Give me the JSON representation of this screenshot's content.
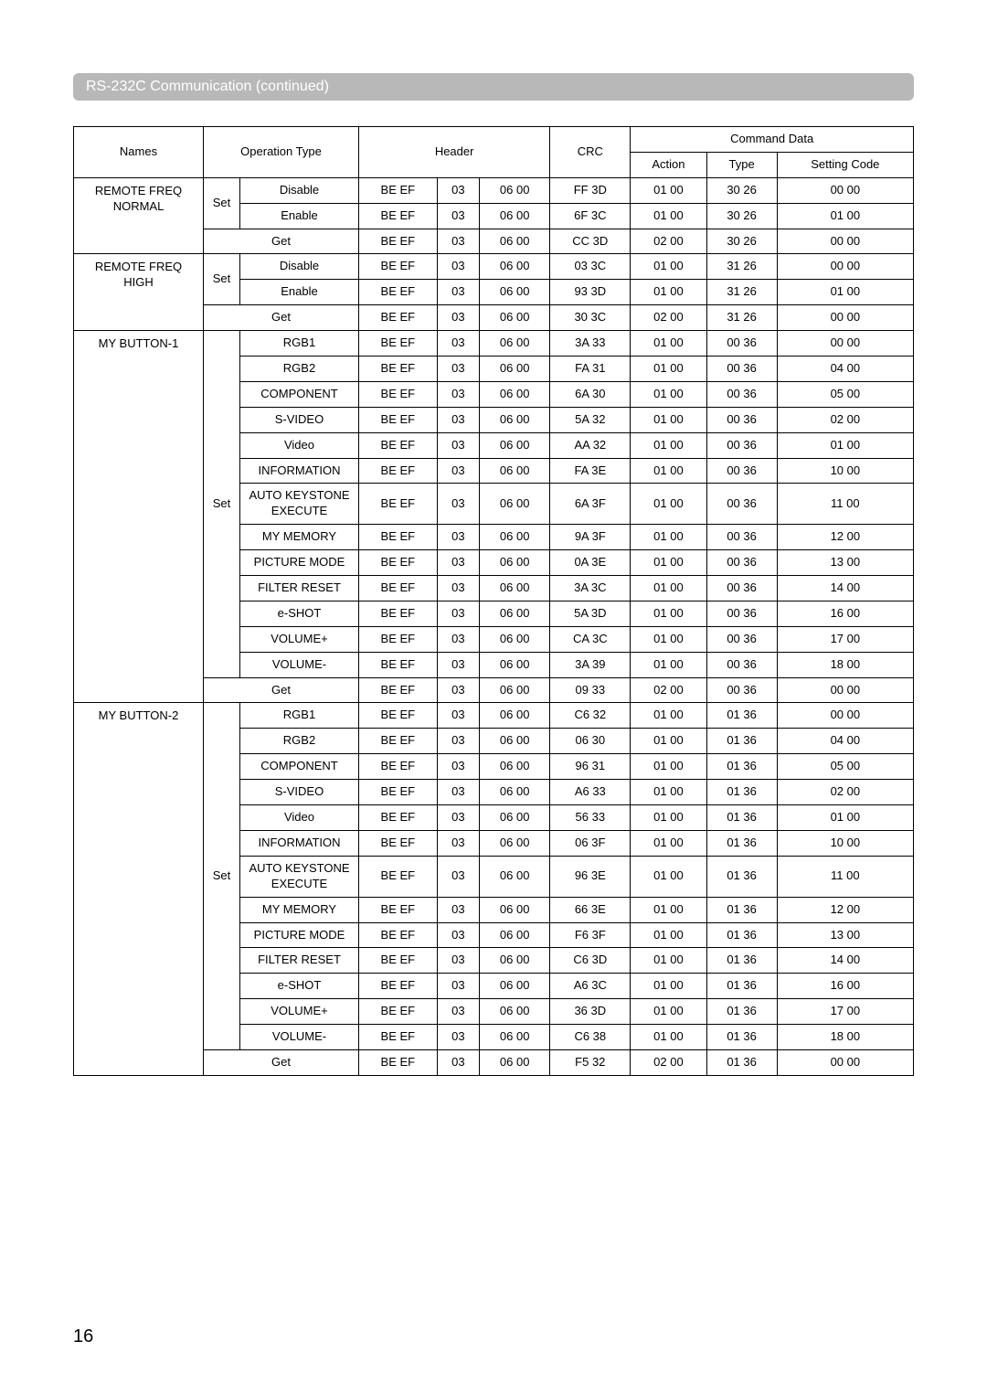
{
  "section_title": "RS-232C Communication (continued)",
  "page_number": "16",
  "headers": {
    "names": "Names",
    "operation_type": "Operation Type",
    "header": "Header",
    "command_data": "Command Data",
    "crc": "CRC",
    "action": "Action",
    "type": "Type",
    "setting_code": "Setting Code"
  },
  "groups": [
    {
      "name_html": "REMOTE FREQ<br>NORMAL",
      "rows": [
        {
          "op_set": "Set",
          "op_val": "Disable",
          "h1": "BE  EF",
          "h2": "03",
          "h3": "06  00",
          "crc": "FF 3D",
          "action": "01 00",
          "type": "30 26",
          "sc": "00 00"
        },
        {
          "op_set": "",
          "op_val": "Enable",
          "h1": "BE  EF",
          "h2": "03",
          "h3": "06  00",
          "crc": "6F 3C",
          "action": "01 00",
          "type": "30 26",
          "sc": "01 00"
        },
        {
          "op_get": "Get",
          "h1": "BE  EF",
          "h2": "03",
          "h3": "06  00",
          "crc": "CC 3D",
          "action": "02 00",
          "type": "30 26",
          "sc": "00 00"
        }
      ]
    },
    {
      "name_html": "REMOTE FREQ HIGH",
      "rows": [
        {
          "op_set": "Set",
          "op_val": "Disable",
          "h1": "BE  EF",
          "h2": "03",
          "h3": "06  00",
          "crc": "03 3C",
          "action": "01 00",
          "type": "31 26",
          "sc": "00 00"
        },
        {
          "op_set": "",
          "op_val": "Enable",
          "h1": "BE  EF",
          "h2": "03",
          "h3": "06  00",
          "crc": "93 3D",
          "action": "01 00",
          "type": "31 26",
          "sc": "01 00"
        },
        {
          "op_get": "Get",
          "h1": "BE  EF",
          "h2": "03",
          "h3": "06  00",
          "crc": "30 3C",
          "action": "02 00",
          "type": "31 26",
          "sc": "00 00"
        }
      ]
    },
    {
      "name_html": "MY BUTTON-1",
      "rows": [
        {
          "op_set": "Set",
          "op_val": "RGB1",
          "h1": "BE  EF",
          "h2": "03",
          "h3": "06  00",
          "crc": "3A 33",
          "action": "01 00",
          "type": "00 36",
          "sc": "00 00"
        },
        {
          "op_set": "",
          "op_val": "RGB2",
          "h1": "BE  EF",
          "h2": "03",
          "h3": "06  00",
          "crc": "FA 31",
          "action": "01 00",
          "type": "00 36",
          "sc": "04 00"
        },
        {
          "op_set": "",
          "op_val": "COMPONENT",
          "h1": "BE  EF",
          "h2": "03",
          "h3": "06  00",
          "crc": "6A 30",
          "action": "01 00",
          "type": "00 36",
          "sc": "05 00"
        },
        {
          "op_set": "",
          "op_val": "S-VIDEO",
          "h1": "BE  EF",
          "h2": "03",
          "h3": "06  00",
          "crc": "5A 32",
          "action": "01 00",
          "type": "00 36",
          "sc": "02 00"
        },
        {
          "op_set": "",
          "op_val": "Video",
          "h1": "BE  EF",
          "h2": "03",
          "h3": "06  00",
          "crc": "AA 32",
          "action": "01 00",
          "type": "00 36",
          "sc": "01 00"
        },
        {
          "op_set": "",
          "op_val": "INFORMATION",
          "h1": "BE  EF",
          "h2": "03",
          "h3": "06  00",
          "crc": "FA 3E",
          "action": "01 00",
          "type": "00 36",
          "sc": "10 00"
        },
        {
          "op_set": "",
          "op_val": "AUTO KEYSTONE EXECUTE",
          "h1": "BE  EF",
          "h2": "03",
          "h3": "06  00",
          "crc": "6A 3F",
          "action": "01 00",
          "type": "00 36",
          "sc": "11 00"
        },
        {
          "op_set": "",
          "op_val": "MY MEMORY",
          "h1": "BE  EF",
          "h2": "03",
          "h3": "06  00",
          "crc": "9A 3F",
          "action": "01 00",
          "type": "00 36",
          "sc": "12 00"
        },
        {
          "op_set": "",
          "op_val": "PICTURE MODE",
          "h1": "BE  EF",
          "h2": "03",
          "h3": "06  00",
          "crc": "0A 3E",
          "action": "01 00",
          "type": "00 36",
          "sc": "13 00"
        },
        {
          "op_set": "",
          "op_val": "FILTER RESET",
          "h1": "BE  EF",
          "h2": "03",
          "h3": "06  00",
          "crc": "3A 3C",
          "action": "01 00",
          "type": "00 36",
          "sc": "14 00"
        },
        {
          "op_set": "",
          "op_val": "e-SHOT",
          "h1": "BE  EF",
          "h2": "03",
          "h3": "06  00",
          "crc": "5A 3D",
          "action": "01 00",
          "type": "00 36",
          "sc": "16 00"
        },
        {
          "op_set": "",
          "op_val": "VOLUME+",
          "h1": "BE  EF",
          "h2": "03",
          "h3": "06  00",
          "crc": "CA 3C",
          "action": "01 00",
          "type": "00 36",
          "sc": "17 00"
        },
        {
          "op_set": "",
          "op_val": "VOLUME-",
          "h1": "BE  EF",
          "h2": "03",
          "h3": "06  00",
          "crc": "3A 39",
          "action": "01 00",
          "type": "00 36",
          "sc": "18 00"
        },
        {
          "op_get": "Get",
          "h1": "BE  EF",
          "h2": "03",
          "h3": "06  00",
          "crc": "09 33",
          "action": "02 00",
          "type": "00 36",
          "sc": "00 00"
        }
      ]
    },
    {
      "name_html": "MY BUTTON-2",
      "rows": [
        {
          "op_set": "Set",
          "op_val": "RGB1",
          "h1": "BE  EF",
          "h2": "03",
          "h3": "06  00",
          "crc": "C6 32",
          "action": "01 00",
          "type": "01 36",
          "sc": "00 00"
        },
        {
          "op_set": "",
          "op_val": "RGB2",
          "h1": "BE  EF",
          "h2": "03",
          "h3": "06  00",
          "crc": "06 30",
          "action": "01 00",
          "type": "01 36",
          "sc": "04 00"
        },
        {
          "op_set": "",
          "op_val": "COMPONENT",
          "h1": "BE  EF",
          "h2": "03",
          "h3": "06  00",
          "crc": "96 31",
          "action": "01 00",
          "type": "01 36",
          "sc": "05 00"
        },
        {
          "op_set": "",
          "op_val": "S-VIDEO",
          "h1": "BE  EF",
          "h2": "03",
          "h3": "06  00",
          "crc": "A6 33",
          "action": "01 00",
          "type": "01 36",
          "sc": "02 00"
        },
        {
          "op_set": "",
          "op_val": "Video",
          "h1": "BE  EF",
          "h2": "03",
          "h3": "06  00",
          "crc": "56 33",
          "action": "01 00",
          "type": "01 36",
          "sc": "01 00"
        },
        {
          "op_set": "",
          "op_val": "INFORMATION",
          "h1": "BE  EF",
          "h2": "03",
          "h3": "06  00",
          "crc": "06 3F",
          "action": "01 00",
          "type": "01 36",
          "sc": "10 00"
        },
        {
          "op_set": "",
          "op_val": "AUTO KEYSTONE EXECUTE",
          "h1": "BE  EF",
          "h2": "03",
          "h3": "06  00",
          "crc": "96 3E",
          "action": "01 00",
          "type": "01 36",
          "sc": "11 00"
        },
        {
          "op_set": "",
          "op_val": "MY MEMORY",
          "h1": "BE  EF",
          "h2": "03",
          "h3": "06  00",
          "crc": "66 3E",
          "action": "01 00",
          "type": "01 36",
          "sc": "12 00"
        },
        {
          "op_set": "",
          "op_val": "PICTURE MODE",
          "h1": "BE  EF",
          "h2": "03",
          "h3": "06  00",
          "crc": "F6 3F",
          "action": "01 00",
          "type": "01 36",
          "sc": "13 00"
        },
        {
          "op_set": "",
          "op_val": "FILTER RESET",
          "h1": "BE  EF",
          "h2": "03",
          "h3": "06  00",
          "crc": "C6 3D",
          "action": "01 00",
          "type": "01 36",
          "sc": "14 00"
        },
        {
          "op_set": "",
          "op_val": "e-SHOT",
          "h1": "BE  EF",
          "h2": "03",
          "h3": "06  00",
          "crc": "A6 3C",
          "action": "01 00",
          "type": "01 36",
          "sc": "16 00"
        },
        {
          "op_set": "",
          "op_val": "VOLUME+",
          "h1": "BE  EF",
          "h2": "03",
          "h3": "06  00",
          "crc": "36 3D",
          "action": "01 00",
          "type": "01 36",
          "sc": "17 00"
        },
        {
          "op_set": "",
          "op_val": "VOLUME-",
          "h1": "BE  EF",
          "h2": "03",
          "h3": "06  00",
          "crc": "C6 38",
          "action": "01 00",
          "type": "01 36",
          "sc": "18 00"
        },
        {
          "op_get": "Get",
          "h1": "BE  EF",
          "h2": "03",
          "h3": "06  00",
          "crc": "F5 32",
          "action": "02 00",
          "type": "01 36",
          "sc": "00 00"
        }
      ]
    }
  ]
}
